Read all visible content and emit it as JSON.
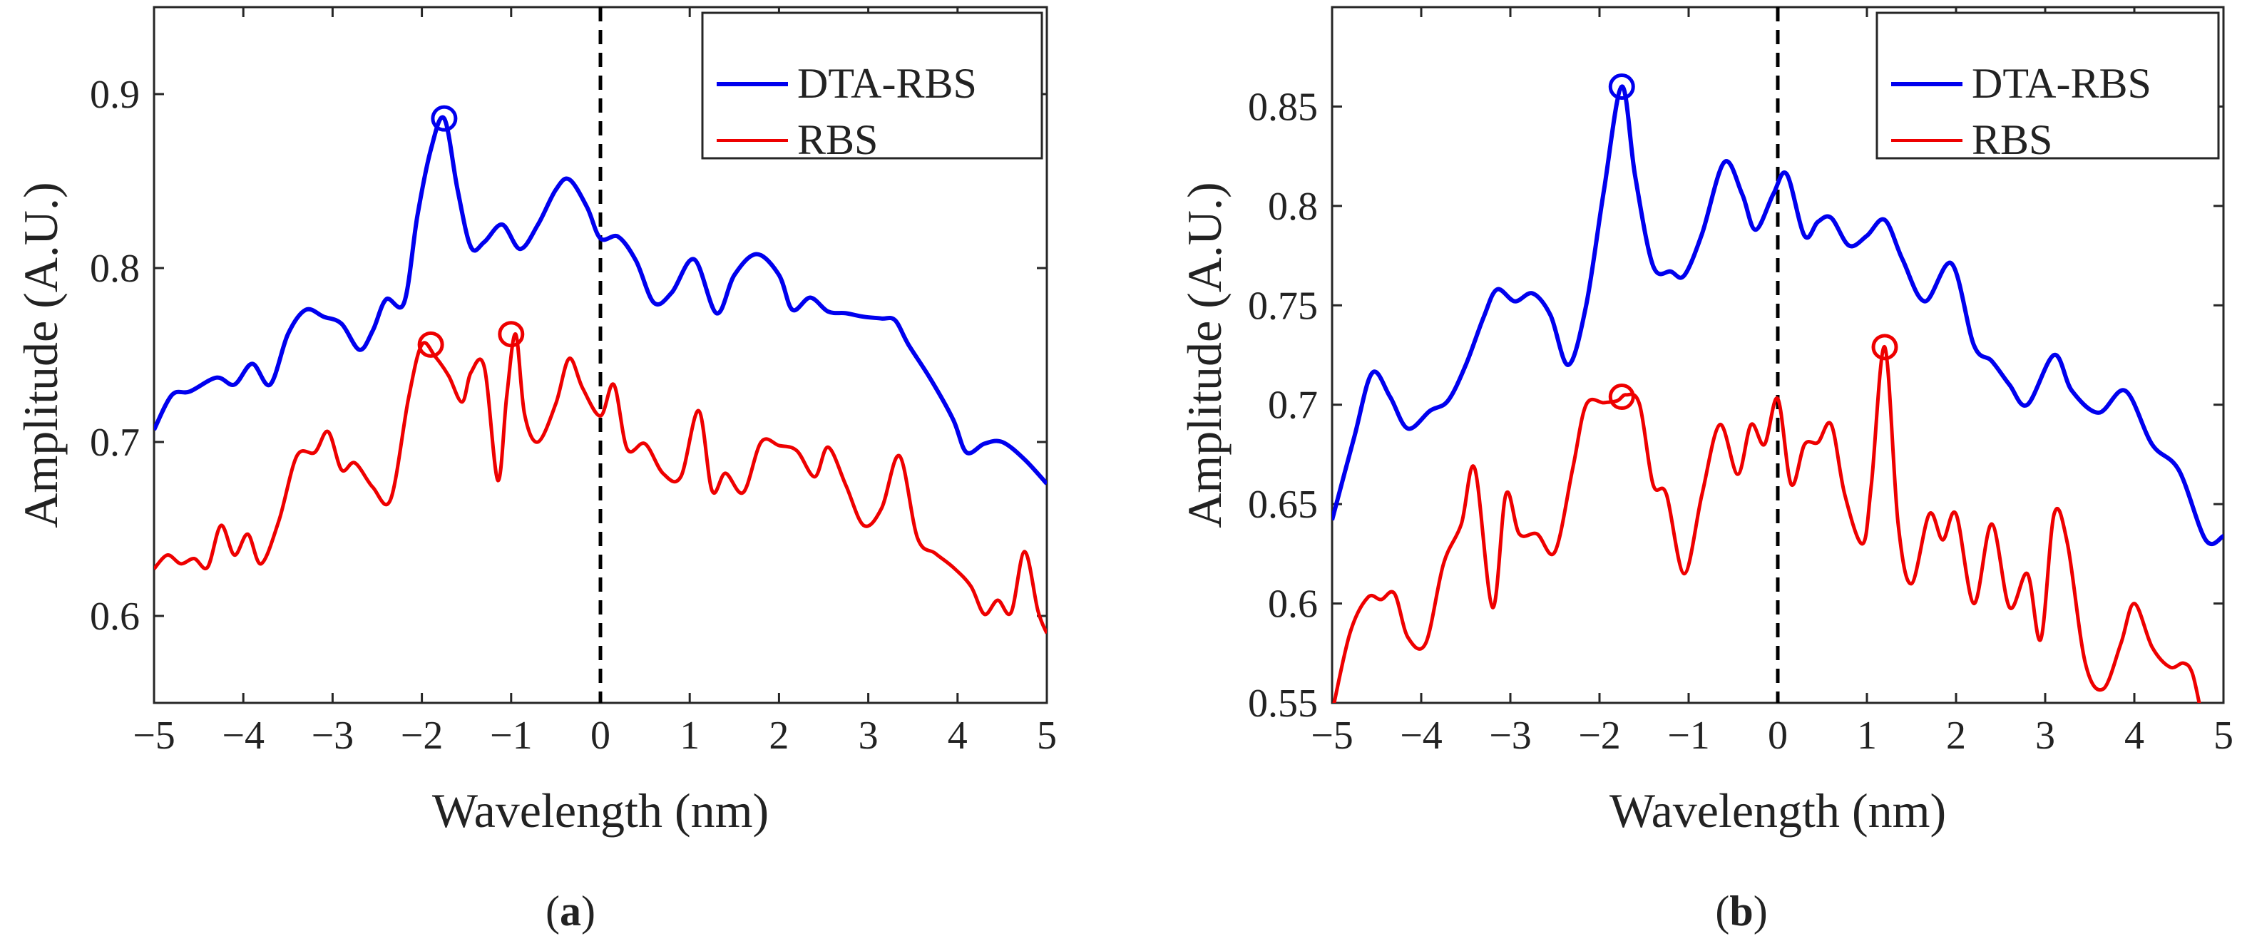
{
  "chart_data": [
    {
      "type": "line",
      "caption": "a",
      "xlabel": "Wavelength (nm)",
      "ylabel": "Amplitude (A.U.)",
      "xlim": [
        -5,
        5
      ],
      "ylim": [
        0.55,
        0.95
      ],
      "xticks": [
        -5,
        -4,
        -3,
        -2,
        -1,
        0,
        1,
        2,
        3,
        4,
        5
      ],
      "xtick_labels": [
        "−5",
        "−4",
        "−3",
        "−2",
        "−1",
        "0",
        "1",
        "2",
        "3",
        "4",
        "5"
      ],
      "yticks": [
        0.6,
        0.7,
        0.8,
        0.9
      ],
      "ytick_labels": [
        "0.6",
        "0.7",
        "0.8",
        "0.9"
      ],
      "grid": false,
      "legend_position": "top-right",
      "reference_line": {
        "x": 0,
        "style": "dashed",
        "color": "#000000"
      },
      "series": [
        {
          "name": "DTA-RBS",
          "color": "#0000ee",
          "x": [
            -5.0,
            -4.8,
            -4.6,
            -4.3,
            -4.1,
            -3.9,
            -3.7,
            -3.5,
            -3.3,
            -3.1,
            -2.9,
            -2.7,
            -2.55,
            -2.4,
            -2.2,
            -2.05,
            -1.9,
            -1.75,
            -1.6,
            -1.45,
            -1.3,
            -1.1,
            -0.9,
            -0.7,
            -0.5,
            -0.35,
            -0.15,
            0.0,
            0.2,
            0.4,
            0.6,
            0.8,
            1.05,
            1.3,
            1.5,
            1.75,
            2.0,
            2.15,
            2.35,
            2.55,
            2.75,
            2.95,
            3.15,
            3.3,
            3.45,
            3.7,
            3.95,
            4.1,
            4.3,
            4.5,
            4.75,
            5.0
          ],
          "y": [
            0.707,
            0.727,
            0.729,
            0.737,
            0.733,
            0.745,
            0.733,
            0.762,
            0.776,
            0.772,
            0.768,
            0.753,
            0.764,
            0.782,
            0.78,
            0.83,
            0.868,
            0.886,
            0.845,
            0.812,
            0.815,
            0.825,
            0.811,
            0.825,
            0.845,
            0.851,
            0.835,
            0.817,
            0.818,
            0.804,
            0.78,
            0.786,
            0.805,
            0.774,
            0.796,
            0.808,
            0.796,
            0.776,
            0.783,
            0.775,
            0.774,
            0.772,
            0.771,
            0.77,
            0.756,
            0.736,
            0.713,
            0.694,
            0.699,
            0.7,
            0.69,
            0.676
          ]
        },
        {
          "name": "RBS",
          "color": "#ee0000",
          "x": [
            -5.0,
            -4.85,
            -4.7,
            -4.55,
            -4.4,
            -4.25,
            -4.1,
            -3.95,
            -3.8,
            -3.6,
            -3.4,
            -3.2,
            -3.05,
            -2.9,
            -2.75,
            -2.55,
            -2.35,
            -2.15,
            -2.0,
            -1.85,
            -1.7,
            -1.55,
            -1.45,
            -1.3,
            -1.15,
            -1.05,
            -0.95,
            -0.85,
            -0.7,
            -0.5,
            -0.35,
            -0.2,
            0.0,
            0.15,
            0.3,
            0.5,
            0.7,
            0.9,
            1.1,
            1.25,
            1.4,
            1.6,
            1.8,
            2.0,
            2.2,
            2.4,
            2.55,
            2.75,
            2.95,
            3.15,
            3.35,
            3.55,
            3.75,
            3.95,
            4.15,
            4.3,
            4.45,
            4.6,
            4.75,
            4.9,
            5.0
          ],
          "y": [
            0.627,
            0.635,
            0.63,
            0.633,
            0.628,
            0.652,
            0.635,
            0.647,
            0.63,
            0.655,
            0.692,
            0.694,
            0.706,
            0.684,
            0.688,
            0.674,
            0.667,
            0.725,
            0.756,
            0.749,
            0.738,
            0.723,
            0.74,
            0.743,
            0.678,
            0.726,
            0.762,
            0.716,
            0.7,
            0.722,
            0.748,
            0.731,
            0.715,
            0.733,
            0.696,
            0.699,
            0.682,
            0.68,
            0.718,
            0.672,
            0.682,
            0.671,
            0.7,
            0.698,
            0.695,
            0.68,
            0.697,
            0.675,
            0.652,
            0.662,
            0.692,
            0.645,
            0.636,
            0.628,
            0.617,
            0.601,
            0.609,
            0.602,
            0.637,
            0.603,
            0.59
          ]
        }
      ],
      "markers": [
        {
          "series": "DTA-RBS",
          "x": -1.75,
          "y": 0.886,
          "shape": "circle"
        },
        {
          "series": "RBS",
          "x": -1.9,
          "y": 0.756,
          "shape": "circle"
        },
        {
          "series": "RBS",
          "x": -1.0,
          "y": 0.762,
          "shape": "circle"
        }
      ]
    },
    {
      "type": "line",
      "caption": "b",
      "xlabel": "Wavelength (nm)",
      "ylabel": "Amplitude (A.U.)",
      "xlim": [
        -5,
        5
      ],
      "ylim": [
        0.55,
        0.9
      ],
      "xticks": [
        -5,
        -4,
        -3,
        -2,
        -1,
        0,
        1,
        2,
        3,
        4,
        5
      ],
      "xtick_labels": [
        "−5",
        "−4",
        "−3",
        "−2",
        "−1",
        "0",
        "1",
        "2",
        "3",
        "4",
        "5"
      ],
      "yticks": [
        0.55,
        0.6,
        0.65,
        0.7,
        0.75,
        0.8,
        0.85
      ],
      "ytick_labels": [
        "0.55",
        "0.6",
        "0.65",
        "0.7",
        "0.75",
        "0.8",
        "0.85"
      ],
      "grid": false,
      "legend_position": "top-right",
      "reference_line": {
        "x": 0,
        "style": "dashed",
        "color": "#000000"
      },
      "series": [
        {
          "name": "DTA-RBS",
          "color": "#0000ee",
          "x": [
            -5.0,
            -4.75,
            -4.55,
            -4.35,
            -4.15,
            -3.9,
            -3.7,
            -3.5,
            -3.3,
            -3.15,
            -2.95,
            -2.75,
            -2.55,
            -2.35,
            -2.15,
            -1.95,
            -1.75,
            -1.6,
            -1.4,
            -1.2,
            -1.05,
            -0.85,
            -0.6,
            -0.4,
            -0.25,
            -0.05,
            0.1,
            0.3,
            0.45,
            0.6,
            0.8,
            1.0,
            1.2,
            1.4,
            1.65,
            1.95,
            2.2,
            2.4,
            2.6,
            2.8,
            3.1,
            3.3,
            3.6,
            3.9,
            4.2,
            4.5,
            4.8,
            5.0
          ],
          "y": [
            0.642,
            0.684,
            0.716,
            0.704,
            0.688,
            0.697,
            0.702,
            0.72,
            0.744,
            0.758,
            0.752,
            0.756,
            0.745,
            0.72,
            0.75,
            0.808,
            0.86,
            0.815,
            0.77,
            0.767,
            0.765,
            0.786,
            0.822,
            0.806,
            0.788,
            0.806,
            0.816,
            0.785,
            0.792,
            0.794,
            0.78,
            0.785,
            0.793,
            0.773,
            0.752,
            0.771,
            0.73,
            0.722,
            0.71,
            0.7,
            0.725,
            0.707,
            0.696,
            0.707,
            0.68,
            0.667,
            0.632,
            0.634
          ]
        },
        {
          "name": "RBS",
          "color": "#ee0000",
          "x": [
            -5.0,
            -4.8,
            -4.6,
            -4.45,
            -4.3,
            -4.15,
            -3.95,
            -3.75,
            -3.55,
            -3.4,
            -3.2,
            -3.05,
            -2.9,
            -2.7,
            -2.5,
            -2.3,
            -2.15,
            -1.95,
            -1.8,
            -1.7,
            -1.55,
            -1.4,
            -1.25,
            -1.05,
            -0.85,
            -0.65,
            -0.45,
            -0.3,
            -0.15,
            0.0,
            0.15,
            0.3,
            0.45,
            0.6,
            0.75,
            0.95,
            1.05,
            1.2,
            1.35,
            1.5,
            1.7,
            1.85,
            2.0,
            2.2,
            2.4,
            2.6,
            2.8,
            2.95,
            3.1,
            3.25,
            3.45,
            3.65,
            3.85,
            4.0,
            4.2,
            4.4,
            4.55,
            4.65,
            4.75
          ],
          "y": [
            0.545,
            0.585,
            0.603,
            0.602,
            0.605,
            0.583,
            0.58,
            0.62,
            0.64,
            0.668,
            0.598,
            0.655,
            0.635,
            0.635,
            0.626,
            0.668,
            0.7,
            0.701,
            0.702,
            0.705,
            0.7,
            0.66,
            0.655,
            0.615,
            0.655,
            0.69,
            0.665,
            0.69,
            0.68,
            0.703,
            0.66,
            0.68,
            0.681,
            0.69,
            0.655,
            0.63,
            0.66,
            0.729,
            0.64,
            0.61,
            0.645,
            0.632,
            0.645,
            0.6,
            0.64,
            0.598,
            0.615,
            0.582,
            0.645,
            0.63,
            0.57,
            0.557,
            0.58,
            0.6,
            0.578,
            0.568,
            0.57,
            0.565,
            0.545
          ]
        }
      ],
      "markers": [
        {
          "series": "DTA-RBS",
          "x": -1.75,
          "y": 0.86,
          "shape": "circle"
        },
        {
          "series": "RBS",
          "x": -1.75,
          "y": 0.704,
          "shape": "circle"
        },
        {
          "series": "RBS",
          "x": 1.2,
          "y": 0.729,
          "shape": "circle"
        }
      ]
    }
  ]
}
